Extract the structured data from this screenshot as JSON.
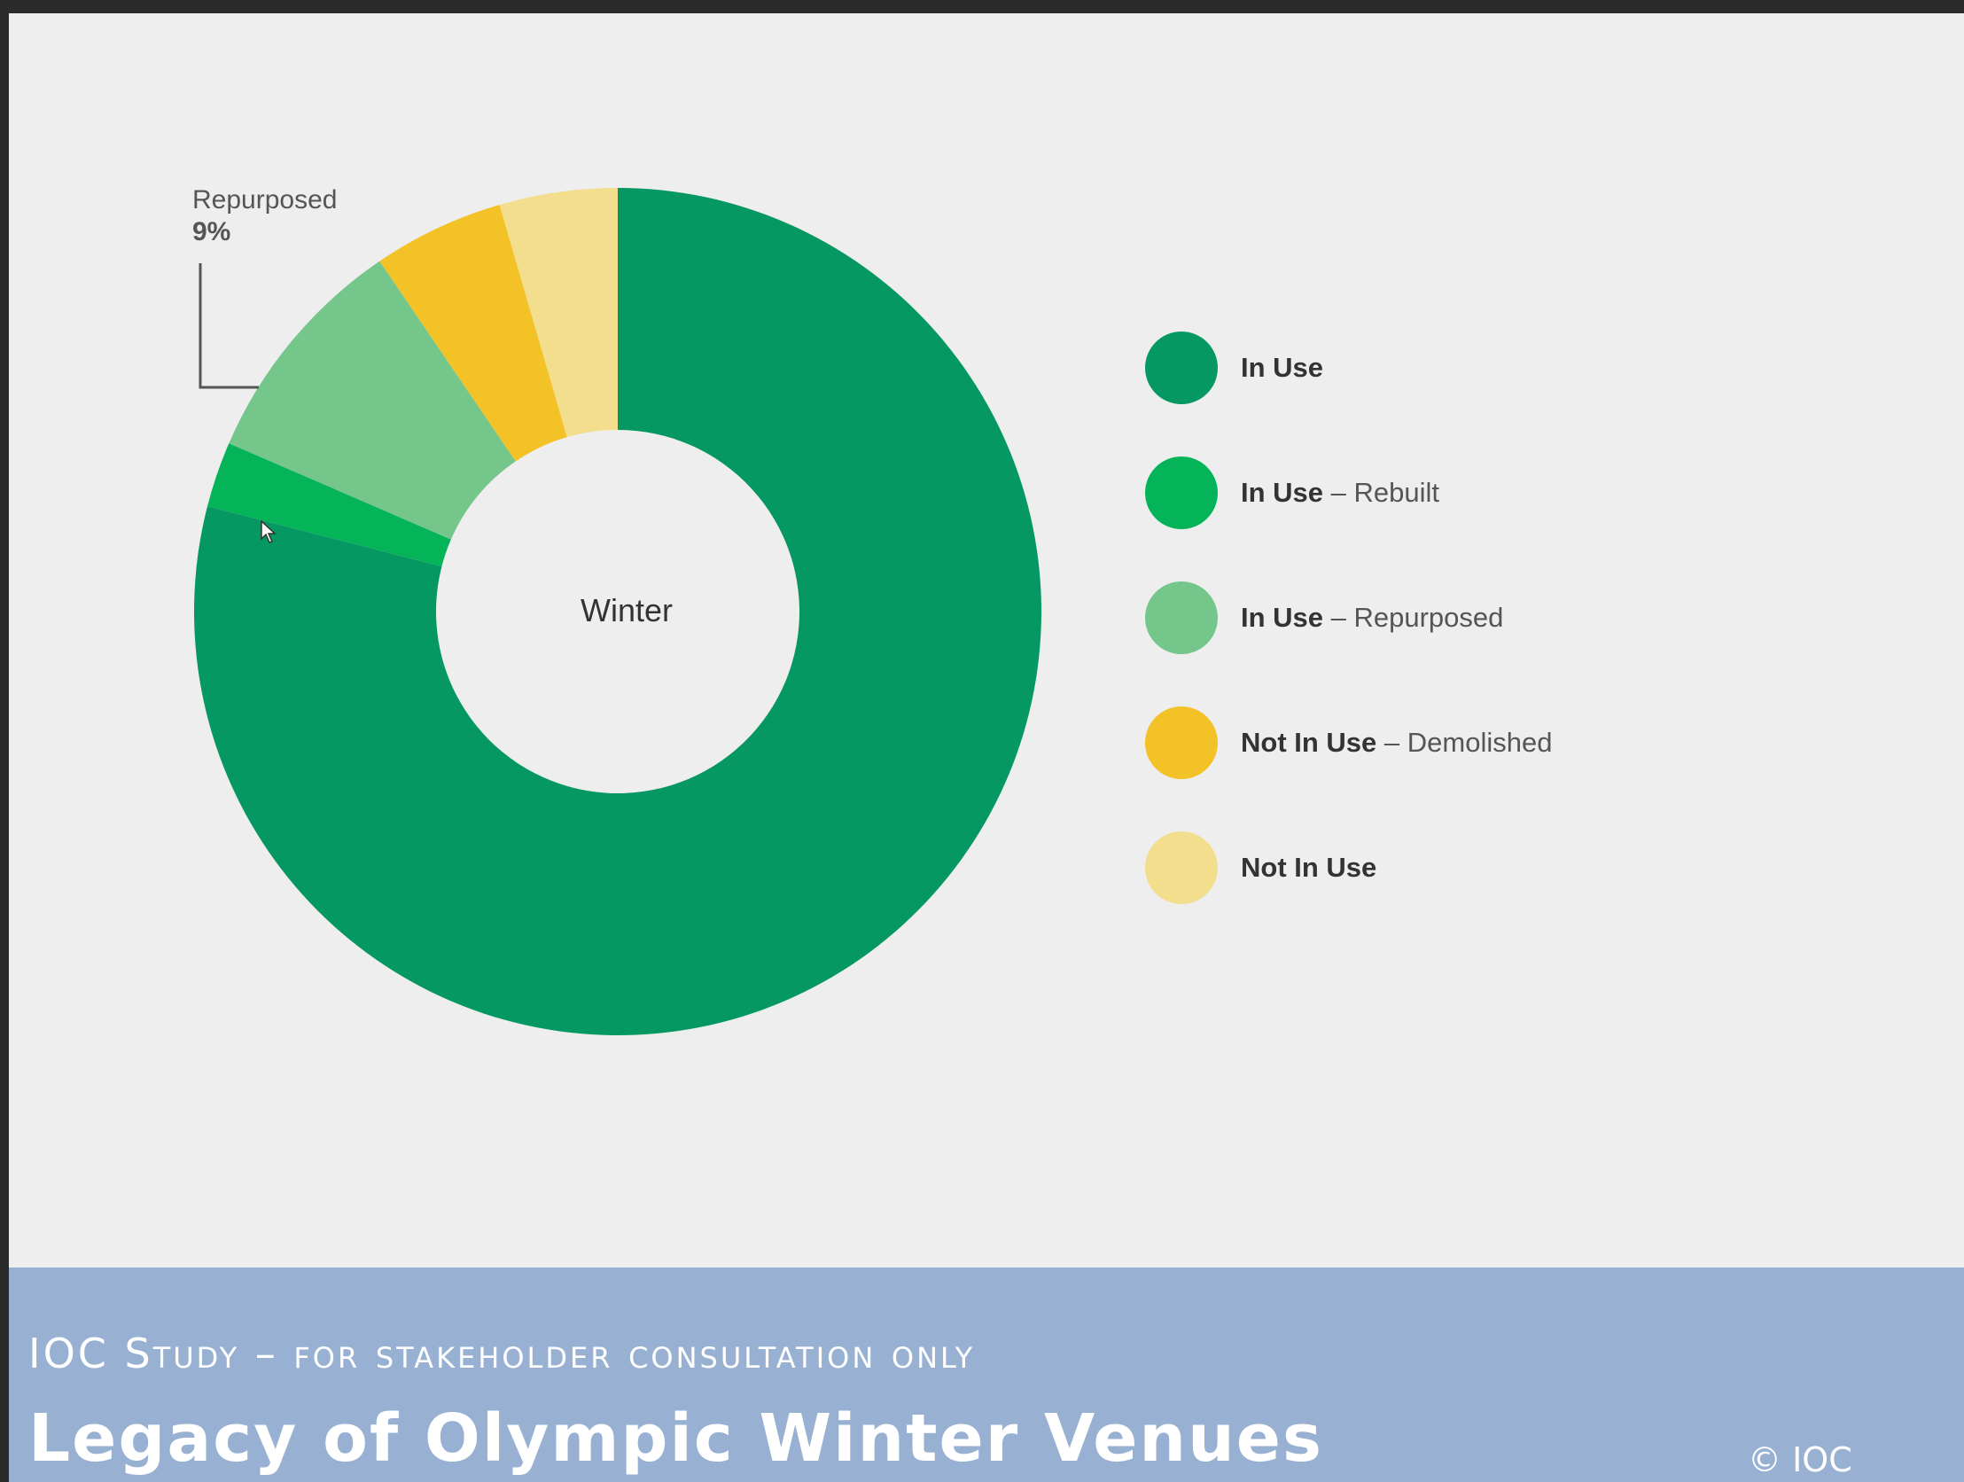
{
  "chart_data": {
    "type": "pie",
    "center_label": "Winter",
    "categories": [
      "In Use",
      "In Use – Rebuilt",
      "In Use – Repurposed",
      "Not In Use – Demolished",
      "Not In Use"
    ],
    "values": [
      79,
      2.5,
      9,
      5,
      4.5
    ],
    "colors": [
      "#069862",
      "#05b459",
      "#74c68b",
      "#f3c226",
      "#f3de8e"
    ],
    "callout": {
      "label": "Repurposed",
      "value": "9%"
    },
    "legend": [
      {
        "strong": "In Use",
        "light": ""
      },
      {
        "strong": "In Use",
        "light": " – Rebuilt"
      },
      {
        "strong": "In Use",
        "light": " – Repurposed"
      },
      {
        "strong": "Not In Use",
        "light": " – Demolished"
      },
      {
        "strong": "Not In Use",
        "light": ""
      }
    ],
    "legend_placement": "right"
  },
  "footer": {
    "subtitle": "IOC Study – for stakeholder consultation only",
    "title": "Legacy of Olympic Winter Venues",
    "copyright": "© IOC"
  }
}
